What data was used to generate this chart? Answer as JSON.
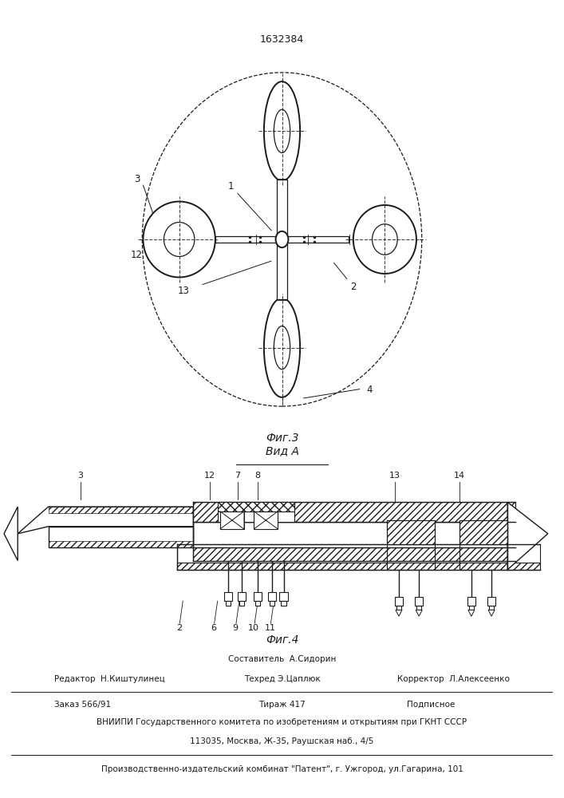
{
  "patent_number": "1632384",
  "fig3_caption": "Фиг.3",
  "fig4_caption": "Фиг.4",
  "vid_a_label": "Вид А",
  "footer_line1_left": "Редактор  Н.Киштулинец",
  "footer_line1_center_top": "Составитель  А.Сидорин",
  "footer_line1_center": "Техред Э.Цаплюк",
  "footer_line1_right": "Корректор  Л.Алексеенко",
  "footer_line2_left": "Заказ 566/91",
  "footer_line2_center": "Тираж 417",
  "footer_line2_right": "Подписное",
  "footer_line3": "ВНИИПИ Государственного комитета по изобретениям и открытиям при ГКНТ СССР",
  "footer_line4": "113035, Москва, Ж-35, Раушская наб., 4/5",
  "footer_line5": "Производственно-издательский комбинат \"Патент\", г. Ужгород, ул.Гагарина, 101",
  "bg_color": "#ffffff",
  "line_color": "#1a1a1a"
}
